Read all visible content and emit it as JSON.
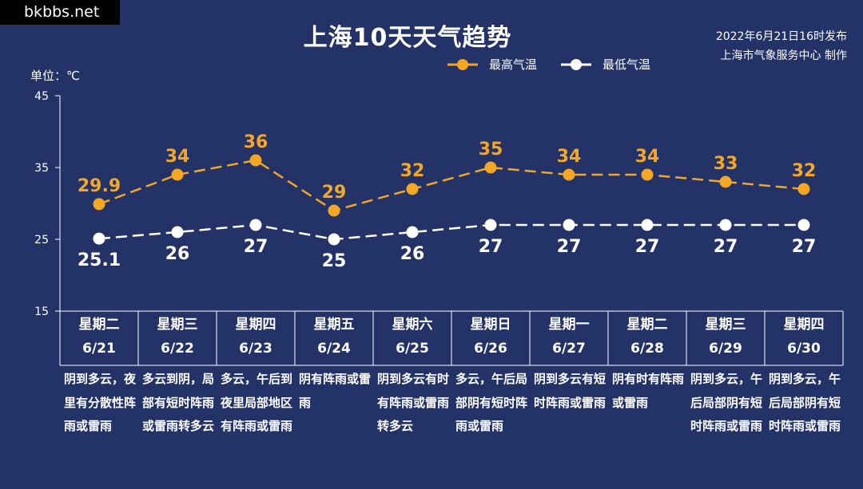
{
  "watermark": "bkbbs.net",
  "title": "上海10天天气趋势",
  "issue": {
    "line1": "2022年6月21日16时发布",
    "line2": "上海市气象服务中心 制作"
  },
  "unit_label": "单位：℃",
  "colors": {
    "background": "#233267",
    "high": "#f5a623",
    "low": "#ffffff"
  },
  "chart_data": {
    "type": "line",
    "ylim": [
      15,
      45
    ],
    "yticks": [
      15,
      25,
      35,
      45
    ],
    "categories": [
      "6/21",
      "6/22",
      "6/23",
      "6/24",
      "6/25",
      "6/26",
      "6/27",
      "6/28",
      "6/29",
      "6/30"
    ],
    "weekdays": [
      "星期二",
      "星期三",
      "星期四",
      "星期五",
      "星期六",
      "星期日",
      "星期一",
      "星期二",
      "星期三",
      "星期四"
    ],
    "series": [
      {
        "name": "最高气温",
        "values": [
          29.9,
          34,
          36,
          29,
          32,
          35,
          34,
          34,
          33,
          32
        ]
      },
      {
        "name": "最低气温",
        "values": [
          25.1,
          26,
          27,
          25,
          26,
          27,
          27,
          27,
          27,
          27
        ]
      }
    ],
    "descriptions": [
      "阴到多云，夜里有分散性阵雨或雷雨",
      "多云到阴，局部有短时阵雨或雷雨转多云",
      "多云，午后到夜里局部地区有阵雨或雷雨",
      "阴有阵雨或雷雨",
      "阴到多云有时有阵雨或雷雨转多云",
      "多云，午后局部阴有短时阵雨或雷雨",
      "阴到多云有短时阵雨或雷雨",
      "阴有时有阵雨或雷雨",
      "阴到多云，午后局部阴有短时阵雨或雷雨",
      "阴到多云，午后局部阴有短时阵雨或雷雨"
    ]
  }
}
